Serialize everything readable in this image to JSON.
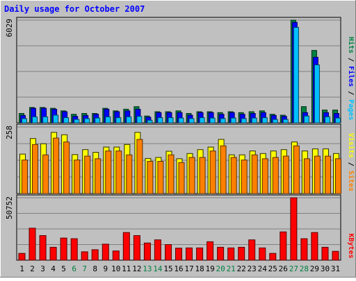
{
  "chart_data": {
    "type": "bar",
    "title": "Daily usage for October 2007",
    "days": [
      "1",
      "2",
      "3",
      "4",
      "5",
      "6",
      "7",
      "8",
      "9",
      "10",
      "11",
      "12",
      "13",
      "14",
      "15",
      "16",
      "17",
      "18",
      "19",
      "20",
      "21",
      "22",
      "23",
      "24",
      "25",
      "26",
      "27",
      "28",
      "29",
      "30",
      "31"
    ],
    "weekend_days": [
      "6",
      "7",
      "13",
      "14",
      "20",
      "21",
      "27",
      "28"
    ],
    "panels": [
      {
        "id": "hits",
        "ymax_label": "6029",
        "ymax": 6029,
        "legend": [
          "Pages",
          "/",
          "Files",
          "/",
          "Hits"
        ],
        "legend_colors": [
          "#00c0ff",
          "#000000",
          "#0000ff",
          "#000000",
          "#008040"
        ],
        "series": [
          {
            "name": "Hits",
            "color": "#008040",
            "values": [
              550,
              900,
              900,
              850,
              700,
              500,
              550,
              550,
              850,
              700,
              800,
              950,
              400,
              650,
              650,
              700,
              550,
              650,
              650,
              600,
              650,
              600,
              650,
              700,
              500,
              450,
              6029,
              950,
              4250,
              750,
              750
            ]
          },
          {
            "name": "Files",
            "color": "#0000ff",
            "values": [
              430,
              850,
              850,
              800,
              650,
              380,
              430,
              500,
              800,
              650,
              700,
              800,
              330,
              600,
              600,
              600,
              450,
              600,
              600,
              500,
              600,
              500,
              550,
              600,
              430,
              380,
              5900,
              600,
              3850,
              600,
              550
            ]
          },
          {
            "name": "Pages",
            "color": "#00c0ff",
            "values": [
              250,
              350,
              350,
              450,
              300,
              200,
              250,
              280,
              350,
              300,
              350,
              380,
              150,
              300,
              300,
              280,
              250,
              300,
              280,
              250,
              280,
              250,
              280,
              300,
              200,
              200,
              5600,
              400,
              3400,
              350,
              280
            ]
          }
        ]
      },
      {
        "id": "visits",
        "ymax_label": "258",
        "ymax": 258,
        "legend": [
          "Sites",
          "/",
          "Visits"
        ],
        "legend_colors": [
          "#ff8000",
          "#000000",
          "#ffff00"
        ],
        "series": [
          {
            "name": "Visits",
            "color": "#ffff00",
            "values": [
              153,
              213,
              193,
              237,
              228,
              151,
              170,
              160,
              180,
              180,
              190,
              237,
              136,
              140,
              164,
              135,
              155,
              170,
              180,
              210,
              150,
              150,
              165,
              155,
              165,
              170,
              200,
              165,
              173,
              173,
              155
            ]
          },
          {
            "name": "Sites",
            "color": "#ff8000",
            "values": [
              130,
              190,
              150,
              215,
              200,
              130,
              145,
              135,
              165,
              165,
              150,
              210,
              125,
              125,
              150,
              120,
              140,
              140,
              165,
              185,
              140,
              130,
              150,
              135,
              140,
              145,
              185,
              135,
              145,
              145,
              135
            ]
          }
        ]
      },
      {
        "id": "kbytes",
        "ymax_label": "50752",
        "ymax": 50752,
        "legend": [
          "KBytes"
        ],
        "legend_colors": [
          "#ff0000"
        ],
        "series": [
          {
            "name": "KBytes",
            "color": "#ff0000",
            "values": [
              5500,
              26000,
              20000,
              10500,
              18000,
              17500,
              6800,
              8500,
              13000,
              7500,
              22500,
              20000,
              14000,
              16500,
              12700,
              9800,
              10000,
              10000,
              15000,
              10500,
              10000,
              10500,
              16500,
              10000,
              5500,
              23000,
              50752,
              17500,
              22500,
              10500,
              7200
            ]
          }
        ]
      }
    ]
  }
}
